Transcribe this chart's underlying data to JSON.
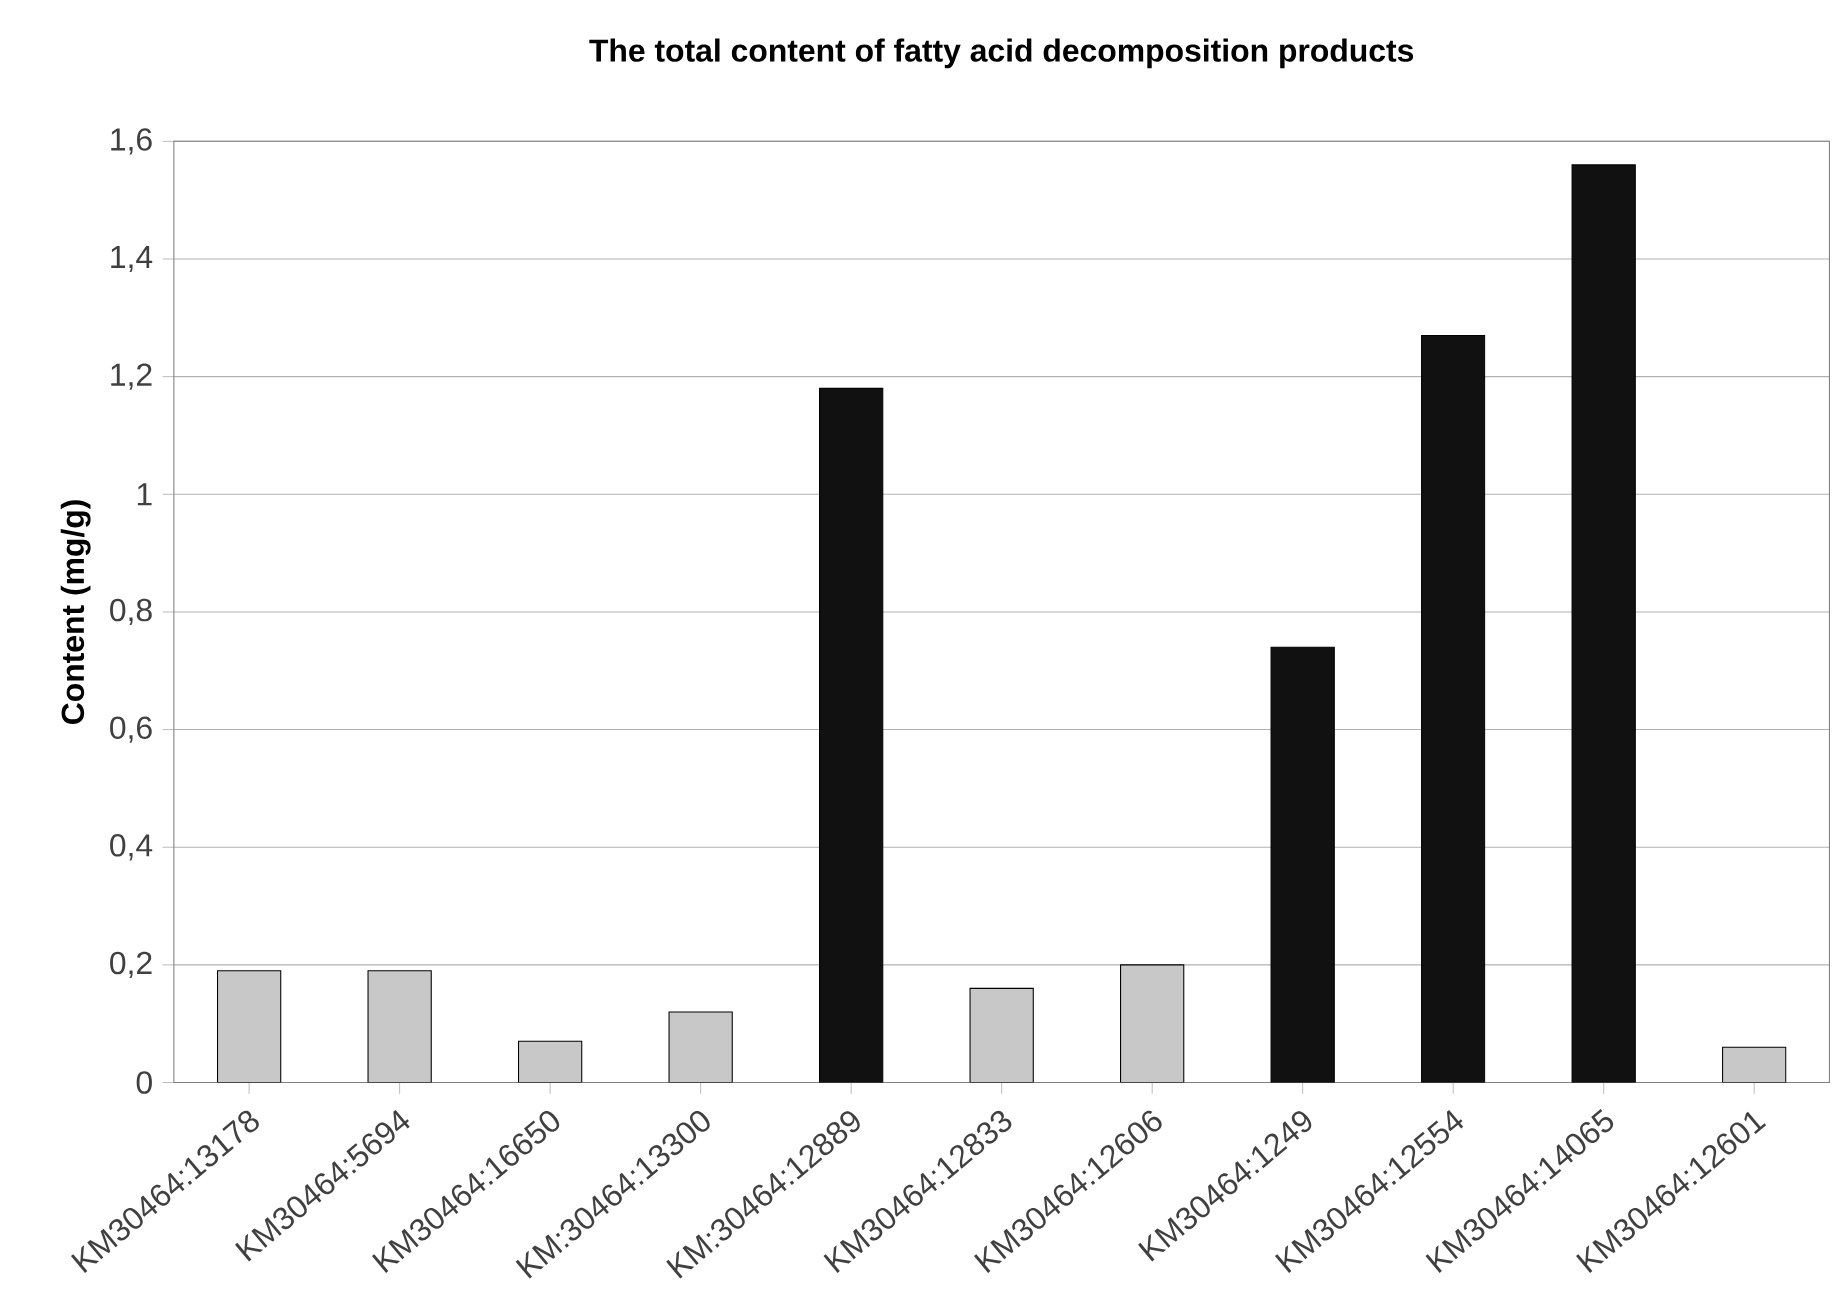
{
  "chart_data": {
    "type": "bar",
    "title": "The total content of fatty acid decomposition products",
    "ylabel": "Content (mg/g)",
    "categories": [
      "KM30464:13178",
      "KM30464:5694",
      "KM30464:16650",
      "KM:30464:13300",
      "KM:30464:12889",
      "KM30464:12833",
      "KM30464:12606",
      "KM30464:1249",
      "KM30464:12554",
      "KM30464:14065",
      "KM30464:12601"
    ],
    "values": [
      0.19,
      0.19,
      0.07,
      0.12,
      1.18,
      0.16,
      0.2,
      0.74,
      1.27,
      1.56,
      0.06
    ],
    "colors": [
      "#c8c8c8",
      "#c8c8c8",
      "#c8c8c8",
      "#c8c8c8",
      "#111111",
      "#c8c8c8",
      "#c8c8c8",
      "#111111",
      "#111111",
      "#111111",
      "#c8c8c8"
    ],
    "ylim": [
      0,
      1.6
    ],
    "yticks": [
      {
        "value": 0,
        "label": "0"
      },
      {
        "value": 0.2,
        "label": "0,2"
      },
      {
        "value": 0.4,
        "label": "0,4"
      },
      {
        "value": 0.6,
        "label": "0,6"
      },
      {
        "value": 0.8,
        "label": "0,8"
      },
      {
        "value": 1,
        "label": "1"
      },
      {
        "value": 1.2,
        "label": "1,2"
      },
      {
        "value": 1.4,
        "label": "1,4"
      },
      {
        "value": 1.6,
        "label": "1,6"
      }
    ],
    "grid": "y"
  }
}
